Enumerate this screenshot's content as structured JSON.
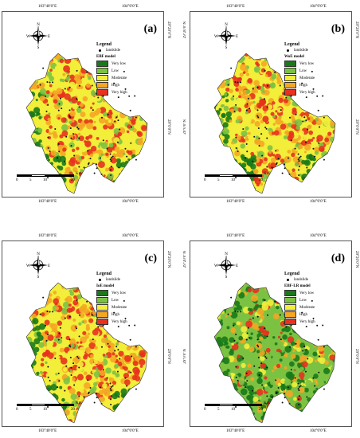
{
  "coords": {
    "lon_left": "103°40′0″E",
    "lon_right": "104°0′0″E",
    "lat_top": "29°20′0″N",
    "lat_mid": "29°0′0″N"
  },
  "compass": {
    "n": "N",
    "s": "S",
    "e": "E",
    "w": "W"
  },
  "legend_title": "Legend",
  "landslide_label": "landslide",
  "classes": [
    {
      "label": "Very low",
      "color": "#1a7a1a"
    },
    {
      "label": "Low",
      "color": "#7cc242"
    },
    {
      "label": "Moderate",
      "color": "#f2ee3a"
    },
    {
      "label": "High",
      "color": "#f5a623"
    },
    {
      "label": "Very high",
      "color": "#e8311e"
    }
  ],
  "scale": {
    "ticks": [
      "0",
      "5",
      "10",
      "20"
    ],
    "unit": "Km"
  },
  "panels": [
    {
      "label": "(a)",
      "model": "EBF model"
    },
    {
      "label": "(b)",
      "model": "WoE model"
    },
    {
      "label": "(c)",
      "model": "IoE model"
    },
    {
      "label": "(d)",
      "model": "EBF-LR model"
    }
  ]
}
